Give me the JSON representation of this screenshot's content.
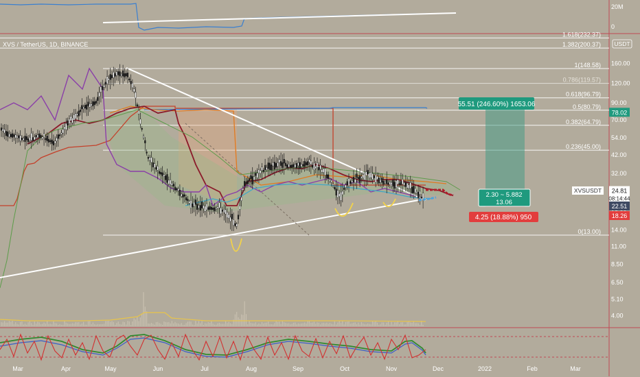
{
  "chart_data": {
    "type": "candlestick",
    "title": "XVS / TetherUS, 1D, BINANCE",
    "symbol": "XVSUSDT",
    "price_axis": {
      "scale": "log",
      "ticks": [
        "160.00",
        "120.00",
        "90.00",
        "70.00",
        "54.00",
        "42.00",
        "32.00",
        "24.00",
        "18.00",
        "14.00",
        "11.00",
        "8.50",
        "6.50",
        "5.10",
        "4.00"
      ],
      "unit_label": "USDT"
    },
    "time_axis": {
      "ticks": [
        "Mar",
        "Apr",
        "May",
        "Jun",
        "Jul",
        "Aug",
        "Sep",
        "Oct",
        "Nov",
        "Dec",
        "2022",
        "Feb",
        "Mar"
      ]
    },
    "fib_levels": [
      {
        "label": "1.618(232.37)",
        "value": 232.37
      },
      {
        "label": "1.382(200.37)",
        "value": 200.37
      },
      {
        "label": "1(148.58)",
        "value": 148.58
      },
      {
        "label": "0.786(119.57)",
        "value": 119.57
      },
      {
        "label": "0.618(96.79)",
        "value": 96.79
      },
      {
        "label": "0.5(80.79)",
        "value": 80.79
      },
      {
        "label": "0.382(64.79)",
        "value": 64.79
      },
      {
        "label": "0.236(45.00)",
        "value": 45.0
      },
      {
        "label": "0(13.00)",
        "value": 13.0
      }
    ],
    "price_tags": [
      {
        "label": "78.02",
        "value": 78.02,
        "color": "#1f9a7e"
      },
      {
        "label": "24.81",
        "value": 24.81,
        "color": "#ffffff",
        "sub": "08:14:44"
      },
      {
        "label": "22.51",
        "value": 22.51,
        "color": "#3f4a63"
      },
      {
        "label": "18.26",
        "value": 18.26,
        "color": "#e23d3d"
      }
    ],
    "annotations": {
      "profit": "55.51 (246.60%) 1653.06",
      "ratio_line1": "2.30 ~ 5.882",
      "ratio_line2": "13.06",
      "loss": "4.25 (18.88%) 950"
    },
    "volume_axis": {
      "ticks": [
        "20M",
        "0"
      ]
    },
    "colors": {
      "background": "#b2ab9c",
      "candles": "#1a1a1a",
      "trendline": "#ffffff",
      "profit": "#1f9a7e",
      "loss": "#e23d3d",
      "ribbon_red": "#8b1a2a",
      "ribbon_purple": "#8a3fa8",
      "ribbon_orange": "#e07a1f",
      "ribbon_blue": "#3a7fd0"
    },
    "grid": false
  }
}
